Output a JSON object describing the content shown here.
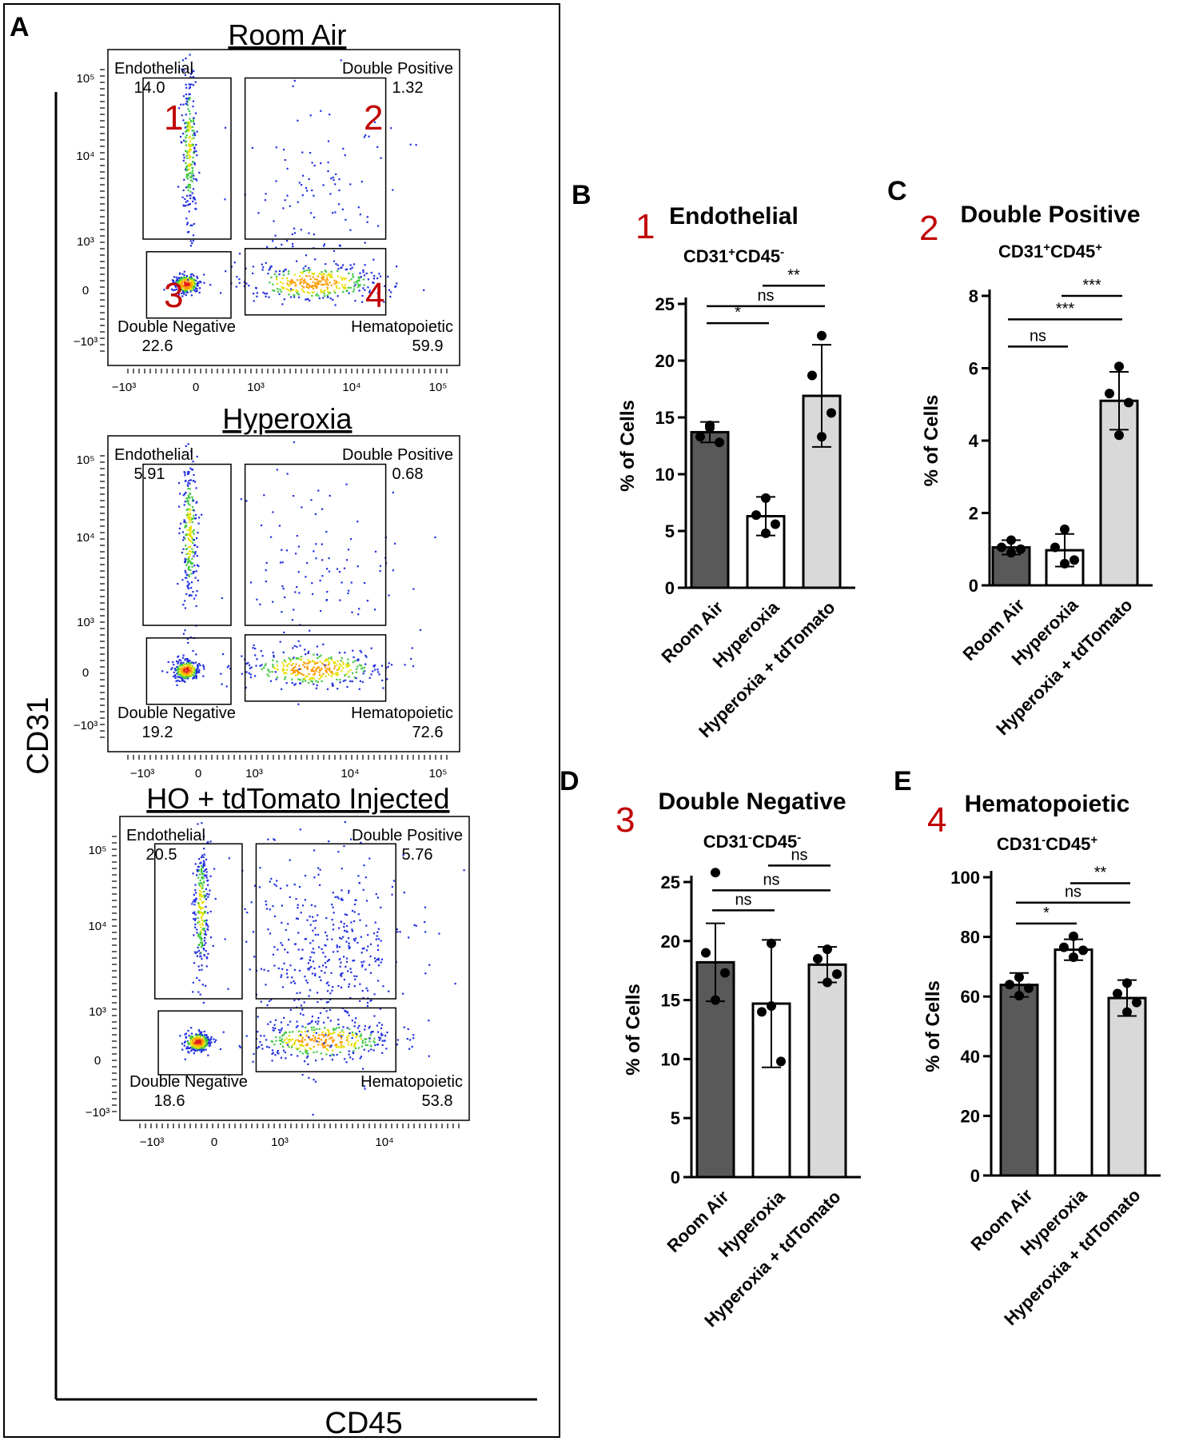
{
  "panel_a": {
    "letter": "A",
    "y_axis_label": "CD31",
    "x_axis_label": "CD45",
    "y_ticks": [
      "10⁵",
      "10⁴",
      "10³",
      "0",
      "−10³"
    ],
    "x_ticks": [
      "−10³",
      "0",
      "10³",
      "10⁴",
      "10⁵"
    ],
    "x_ticks_short": [
      "−10³",
      "0",
      "10³",
      "10⁴"
    ],
    "quadrant_numbers": [
      "1",
      "2",
      "3",
      "4"
    ],
    "plots": [
      {
        "title": "Room Air",
        "gates": [
          {
            "name": "Endothelial",
            "value": "14.0"
          },
          {
            "name": "Double Positive",
            "value": "1.32"
          },
          {
            "name": "Double Negative",
            "value": "22.6"
          },
          {
            "name": "Hematopoietic",
            "value": "59.9"
          }
        ]
      },
      {
        "title": "Hyperoxia",
        "gates": [
          {
            "name": "Endothelial",
            "value": "5.91"
          },
          {
            "name": "Double Positive",
            "value": "0.68"
          },
          {
            "name": "Double Negative",
            "value": "19.2"
          },
          {
            "name": "Hematopoietic",
            "value": "72.6"
          }
        ]
      },
      {
        "title": "HO + tdTomato Injected",
        "gates": [
          {
            "name": "Endothelial",
            "value": "20.5"
          },
          {
            "name": "Double Positive",
            "value": "5.76"
          },
          {
            "name": "Double Negative",
            "value": "18.6"
          },
          {
            "name": "Hematopoietic",
            "value": "53.8"
          }
        ]
      }
    ]
  },
  "chart_data": [
    {
      "type": "bar",
      "letter": "B",
      "number": "1",
      "title": "Endothelial",
      "subtitle": {
        "base1": "CD31",
        "sup1": "+",
        "base2": "CD45",
        "sup2": "-"
      },
      "ylabel": "% of Cells",
      "categories": [
        "Room Air",
        "Hyperoxia",
        "Hyperoxia + tdTomato"
      ],
      "values": [
        13.7,
        6.3,
        16.9
      ],
      "errors": [
        0.9,
        1.7,
        4.5
      ],
      "points": [
        [
          14.3,
          13.3,
          12.8,
          14.1
        ],
        [
          7.9,
          6.4,
          5.6,
          4.8
        ],
        [
          22.2,
          18.7,
          15.4,
          13.3
        ]
      ],
      "yticks": [
        0,
        5,
        10,
        15,
        20,
        25
      ],
      "ylim": [
        0,
        25
      ],
      "significance": [
        {
          "label": "*",
          "from": 0,
          "to": 1,
          "y": 23.3
        },
        {
          "label": "ns",
          "from": 0,
          "to": 2,
          "y": 24.8
        },
        {
          "label": "**",
          "from": 1,
          "to": 2,
          "y": 26.6
        }
      ],
      "colors": [
        "#595959",
        "#ffffff",
        "#d9d9d9"
      ]
    },
    {
      "type": "bar",
      "letter": "C",
      "number": "2",
      "title": "Double Positive",
      "subtitle": {
        "base1": "CD31",
        "sup1": "+",
        "base2": "CD45",
        "sup2": "+"
      },
      "ylabel": "% of Cells",
      "categories": [
        "Room Air",
        "Hyperoxia",
        "Hyperoxia + tdTomato"
      ],
      "values": [
        1.05,
        0.97,
        5.1
      ],
      "errors": [
        0.2,
        0.45,
        0.8
      ],
      "points": [
        [
          1.25,
          1.05,
          1.0,
          0.9
        ],
        [
          1.55,
          1.05,
          0.7,
          0.6
        ],
        [
          6.05,
          5.3,
          5.05,
          4.15
        ]
      ],
      "yticks": [
        0,
        2,
        4,
        6,
        8
      ],
      "ylim": [
        0,
        8
      ],
      "significance": [
        {
          "label": "ns",
          "from": 0,
          "to": 1,
          "y": 6.6
        },
        {
          "label": "***",
          "from": 0,
          "to": 2,
          "y": 7.35
        },
        {
          "label": "***",
          "from": 1,
          "to": 2,
          "y": 8.0
        }
      ],
      "colors": [
        "#595959",
        "#ffffff",
        "#d9d9d9"
      ]
    },
    {
      "type": "bar",
      "letter": "D",
      "number": "3",
      "title": "Double Negative",
      "subtitle": {
        "base1": "CD31",
        "sup1": "-",
        "base2": "CD45",
        "sup2": "-"
      },
      "ylabel": "% of Cells",
      "categories": [
        "Room Air",
        "Hyperoxia",
        "Hyperoxia + tdTomato"
      ],
      "values": [
        18.2,
        14.7,
        18.0
      ],
      "errors": [
        3.3,
        5.4,
        1.5
      ],
      "points": [
        [
          25.8,
          19.0,
          17.3,
          15.0
        ],
        [
          19.8,
          14.0,
          9.8,
          14.5
        ],
        [
          19.3,
          18.5,
          17.2,
          16.5
        ]
      ],
      "yticks": [
        0,
        5,
        10,
        15,
        20,
        25
      ],
      "ylim": [
        0,
        25
      ],
      "significance": [
        {
          "label": "ns",
          "from": 0,
          "to": 1,
          "y": 22.6
        },
        {
          "label": "ns",
          "from": 0,
          "to": 2,
          "y": 24.3
        },
        {
          "label": "ns",
          "from": 1,
          "to": 2,
          "y": 26.4
        }
      ],
      "colors": [
        "#595959",
        "#ffffff",
        "#d9d9d9"
      ]
    },
    {
      "type": "bar",
      "letter": "E",
      "number": "4",
      "title": "Hematopoietic",
      "subtitle": {
        "base1": "CD31",
        "sup1": "-",
        "base2": "CD45",
        "sup2": "+"
      },
      "ylabel": "% of Cells",
      "categories": [
        "Room Air",
        "Hyperoxia",
        "Hyperoxia + tdTomato"
      ],
      "values": [
        63.9,
        75.7,
        59.5
      ],
      "errors": [
        4.0,
        3.5,
        6.0
      ],
      "points": [
        [
          66.5,
          64.0,
          62.8,
          60.3
        ],
        [
          80.2,
          76.5,
          75.5,
          73.2
        ],
        [
          64.5,
          61.0,
          58.0,
          54.8
        ]
      ],
      "yticks": [
        0,
        20,
        40,
        60,
        80,
        100
      ],
      "ylim": [
        0,
        100
      ],
      "significance": [
        {
          "label": "*",
          "from": 0,
          "to": 1,
          "y": 84.5
        },
        {
          "label": "ns",
          "from": 0,
          "to": 2,
          "y": 91.5
        },
        {
          "label": "**",
          "from": 1,
          "to": 2,
          "y": 98.0
        }
      ],
      "colors": [
        "#595959",
        "#ffffff",
        "#d9d9d9"
      ]
    }
  ]
}
